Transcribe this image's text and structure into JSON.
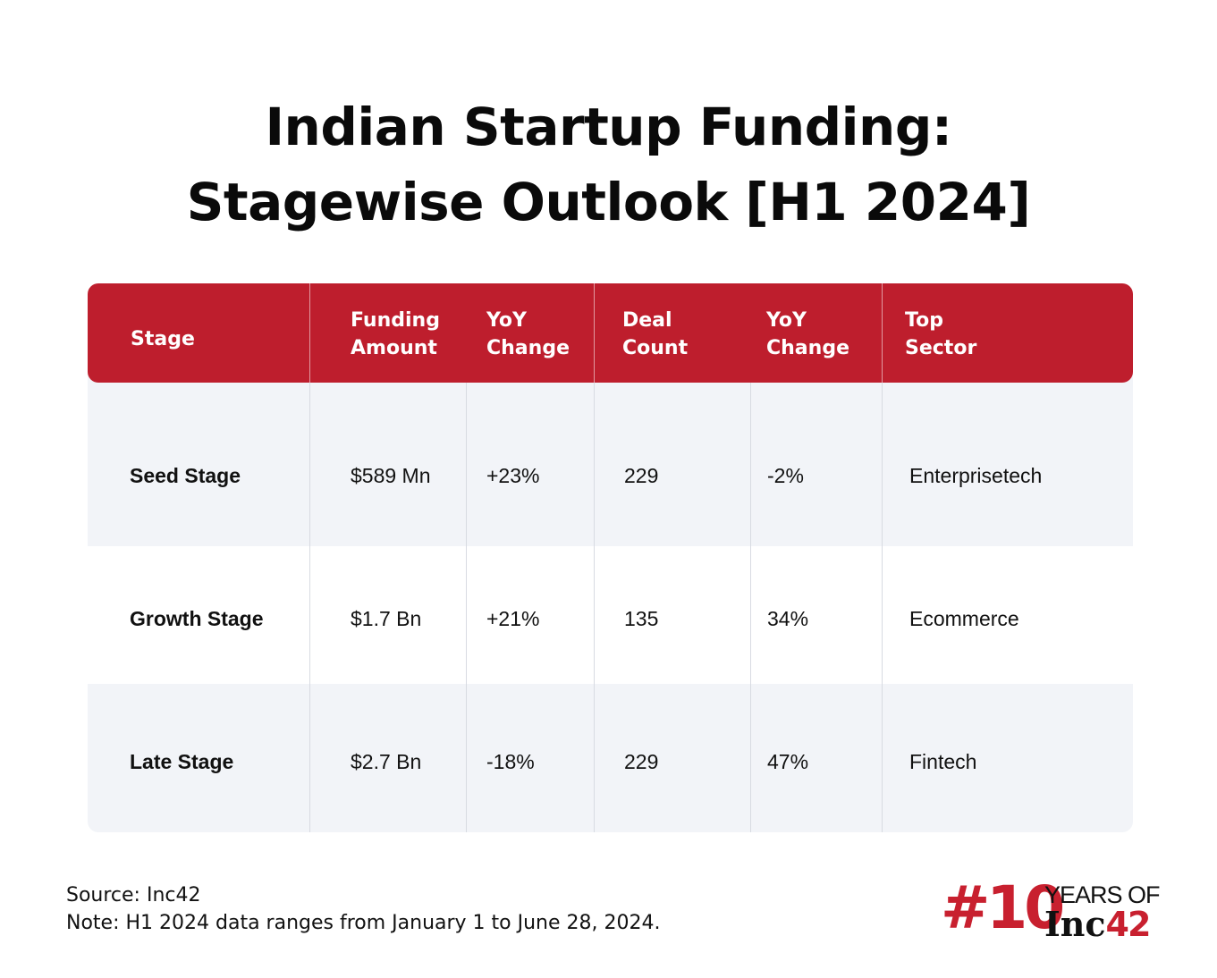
{
  "title": {
    "line1": "Indian Startup Funding:",
    "line2": "Stagewise Outlook [H1 2024]"
  },
  "chart_data": {
    "type": "table",
    "title": "Indian Startup Funding: Stagewise Outlook [H1 2024]",
    "columns": [
      "Stage",
      "Funding\nAmount",
      "YoY\nChange",
      "Deal\nCount",
      "YoY\nChange",
      "Top\nSector"
    ],
    "rows": [
      [
        "Seed Stage",
        "$589 Mn",
        "+23%",
        "229",
        "-2%",
        "Enterprisetech"
      ],
      [
        "Growth Stage",
        "$1.7 Bn",
        "+21%",
        "135",
        "34%",
        "Ecommerce"
      ],
      [
        "Late Stage",
        "$2.7 Bn",
        "-18%",
        "229",
        "47%",
        "Fintech"
      ]
    ]
  },
  "footer": {
    "source": "Source: Inc42",
    "note": "Note: H1 2024 data ranges from January 1 to June 28, 2024."
  },
  "logo": {
    "number": "#10",
    "years": "YEARS OF",
    "brand": "Inc",
    "brand_num": "42"
  },
  "colors": {
    "header_bg": "#be1e2d",
    "row_shade": "#f2f4f8",
    "logo_red": "#c8202f"
  }
}
